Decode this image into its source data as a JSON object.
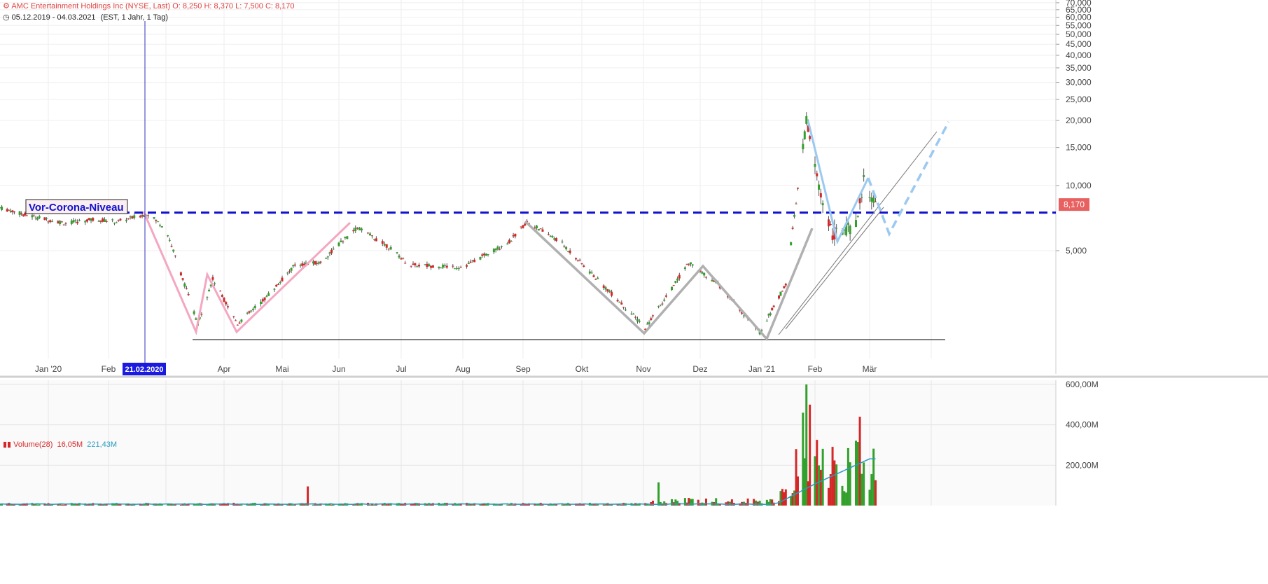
{
  "header": {
    "instrument": "AMC Entertainment Holdings Inc (NYSE, Last)",
    "open": "O: 8,250",
    "high": "H: 8,370",
    "low": "L: 7,500",
    "close": "C: 8,170",
    "range": "05.12.2019 - 04.03.2021",
    "settings": "(EST, 1 Jahr, 1 Tag)"
  },
  "volume_header": {
    "label": "Volume(28)",
    "value1": "16,05M",
    "value2": "221,43M"
  },
  "annotation": {
    "text": "Vor-Corona-Niveau"
  },
  "crosshair_date": "21.02.2020",
  "current_price": "8,170",
  "colors": {
    "up": "#33a02c",
    "down": "#d62728",
    "level_line": "#1010d0",
    "pink": "#f4a7c0",
    "gray": "#b0b0b0",
    "lightblue": "#9cc9f0",
    "ma": "#2a9bbf"
  },
  "chart_data": [
    {
      "type": "candlestick",
      "title": "",
      "y_scale": "log",
      "y_tick_labels": [
        "70,000",
        "65,000",
        "60,000",
        "55,000",
        "50,000",
        "45,000",
        "40,000",
        "35,000",
        "30,000",
        "25,000",
        "20,000",
        "15,000",
        "10,000",
        "5,000"
      ],
      "x_tick_labels": [
        "Jan '20",
        "Feb",
        "Apr",
        "Mai",
        "Jun",
        "Jul",
        "Aug",
        "Sep",
        "Okt",
        "Nov",
        "Dez",
        "Jan '21",
        "Feb",
        "Mär"
      ],
      "reference_level": 7.5,
      "last_value": 8.17,
      "anchors": [
        {
          "date": "2019-12-05",
          "value": 7.9
        },
        {
          "date": "2019-12-20",
          "value": 7.3
        },
        {
          "date": "2020-01-10",
          "value": 6.7
        },
        {
          "date": "2020-01-25",
          "value": 7.0
        },
        {
          "date": "2020-02-05",
          "value": 6.8
        },
        {
          "date": "2020-02-21",
          "value": 7.4
        },
        {
          "date": "2020-03-01",
          "value": 6.3
        },
        {
          "date": "2020-03-18",
          "value": 2.3
        },
        {
          "date": "2020-03-26",
          "value": 3.7
        },
        {
          "date": "2020-04-08",
          "value": 2.3
        },
        {
          "date": "2020-04-22",
          "value": 3.0
        },
        {
          "date": "2020-05-08",
          "value": 4.3
        },
        {
          "date": "2020-05-22",
          "value": 4.4
        },
        {
          "date": "2020-06-10",
          "value": 6.4
        },
        {
          "date": "2020-06-25",
          "value": 5.2
        },
        {
          "date": "2020-07-05",
          "value": 4.3
        },
        {
          "date": "2020-08-01",
          "value": 4.2
        },
        {
          "date": "2020-08-25",
          "value": 5.5
        },
        {
          "date": "2020-09-03",
          "value": 6.8
        },
        {
          "date": "2020-09-20",
          "value": 5.5
        },
        {
          "date": "2020-10-20",
          "value": 2.9
        },
        {
          "date": "2020-11-02",
          "value": 2.2
        },
        {
          "date": "2020-11-25",
          "value": 4.4
        },
        {
          "date": "2020-12-10",
          "value": 3.5
        },
        {
          "date": "2020-12-31",
          "value": 2.1
        },
        {
          "date": "2021-01-15",
          "value": 3.5
        },
        {
          "date": "2021-01-27",
          "value": 19.9
        },
        {
          "date": "2021-02-04",
          "value": 9.0
        },
        {
          "date": "2021-02-10",
          "value": 6.0
        },
        {
          "date": "2021-02-22",
          "value": 6.5
        },
        {
          "date": "2021-02-26",
          "value": 10.5
        },
        {
          "date": "2021-03-04",
          "value": 8.17
        }
      ]
    },
    {
      "type": "bar",
      "title": "",
      "y_tick_labels": [
        "600,00M",
        "400,00M",
        "200,00M"
      ],
      "ylim": [
        0,
        600
      ],
      "unit": "M",
      "ma_series": {
        "name": "Volume(28)",
        "value": 221.43
      },
      "spikes": [
        {
          "date": "2020-05-15",
          "value": 95
        },
        {
          "date": "2020-11-09",
          "value": 115
        },
        {
          "date": "2021-01-21",
          "value": 280
        },
        {
          "date": "2021-01-25",
          "value": 460
        },
        {
          "date": "2021-01-27",
          "value": 600
        },
        {
          "date": "2021-01-29",
          "value": 500
        },
        {
          "date": "2021-02-24",
          "value": 440
        }
      ]
    }
  ]
}
